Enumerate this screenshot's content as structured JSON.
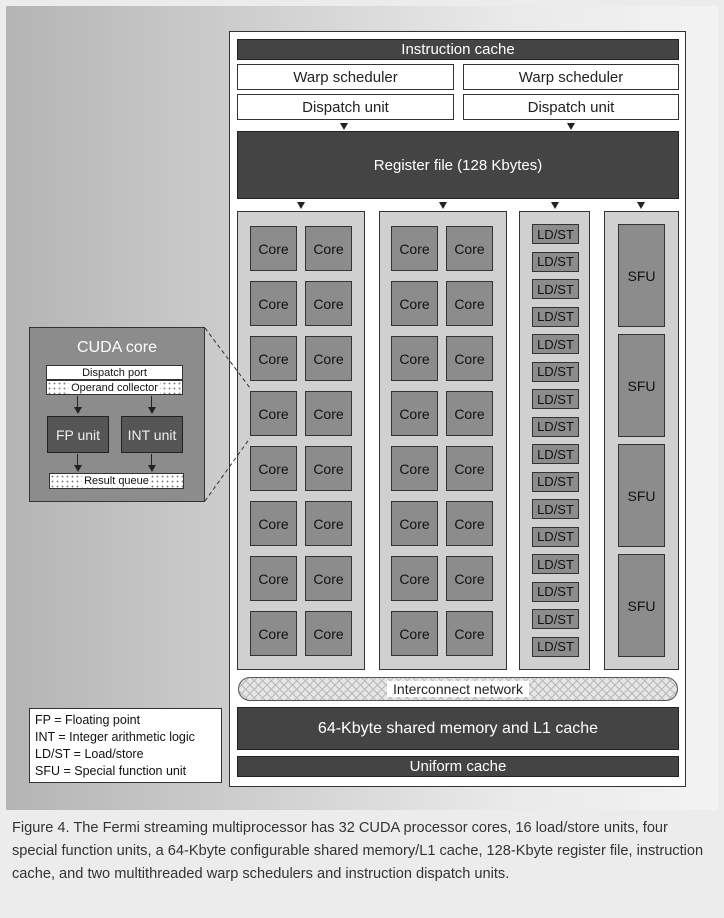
{
  "sm": {
    "instruction_cache": "Instruction cache",
    "warp_scheduler_left": "Warp scheduler",
    "warp_scheduler_right": "Warp scheduler",
    "dispatch_unit_left": "Dispatch unit",
    "dispatch_unit_right": "Dispatch unit",
    "register_file": "Register file (128 Kbytes)",
    "core_label": "Core",
    "ldst_label": "LD/ST",
    "sfu_label": "SFU",
    "interconnect": "Interconnect network",
    "shared_memory": "64-Kbyte shared memory and L1 cache",
    "uniform_cache": "Uniform cache",
    "core_count": 32,
    "ldst_count": 16,
    "sfu_count": 4
  },
  "cuda_core": {
    "title": "CUDA core",
    "dispatch_port": "Dispatch port",
    "operand_collector": "Operand collector",
    "fp_unit": "FP unit",
    "int_unit": "INT unit",
    "result_queue": "Result queue"
  },
  "legend": {
    "items": [
      "FP = Floating point",
      "INT = Integer arithmetic logic",
      "LD/ST = Load/store",
      "SFU = Special function unit"
    ]
  },
  "caption": "Figure 4. The Fermi streaming multiprocessor has 32 CUDA processor cores, 16 load/store units, four special function units, a 64-Kbyte configurable shared memory/L1 cache, 128-Kbyte register file, instruction cache, and two multithreaded warp schedulers and instruction dispatch units."
}
